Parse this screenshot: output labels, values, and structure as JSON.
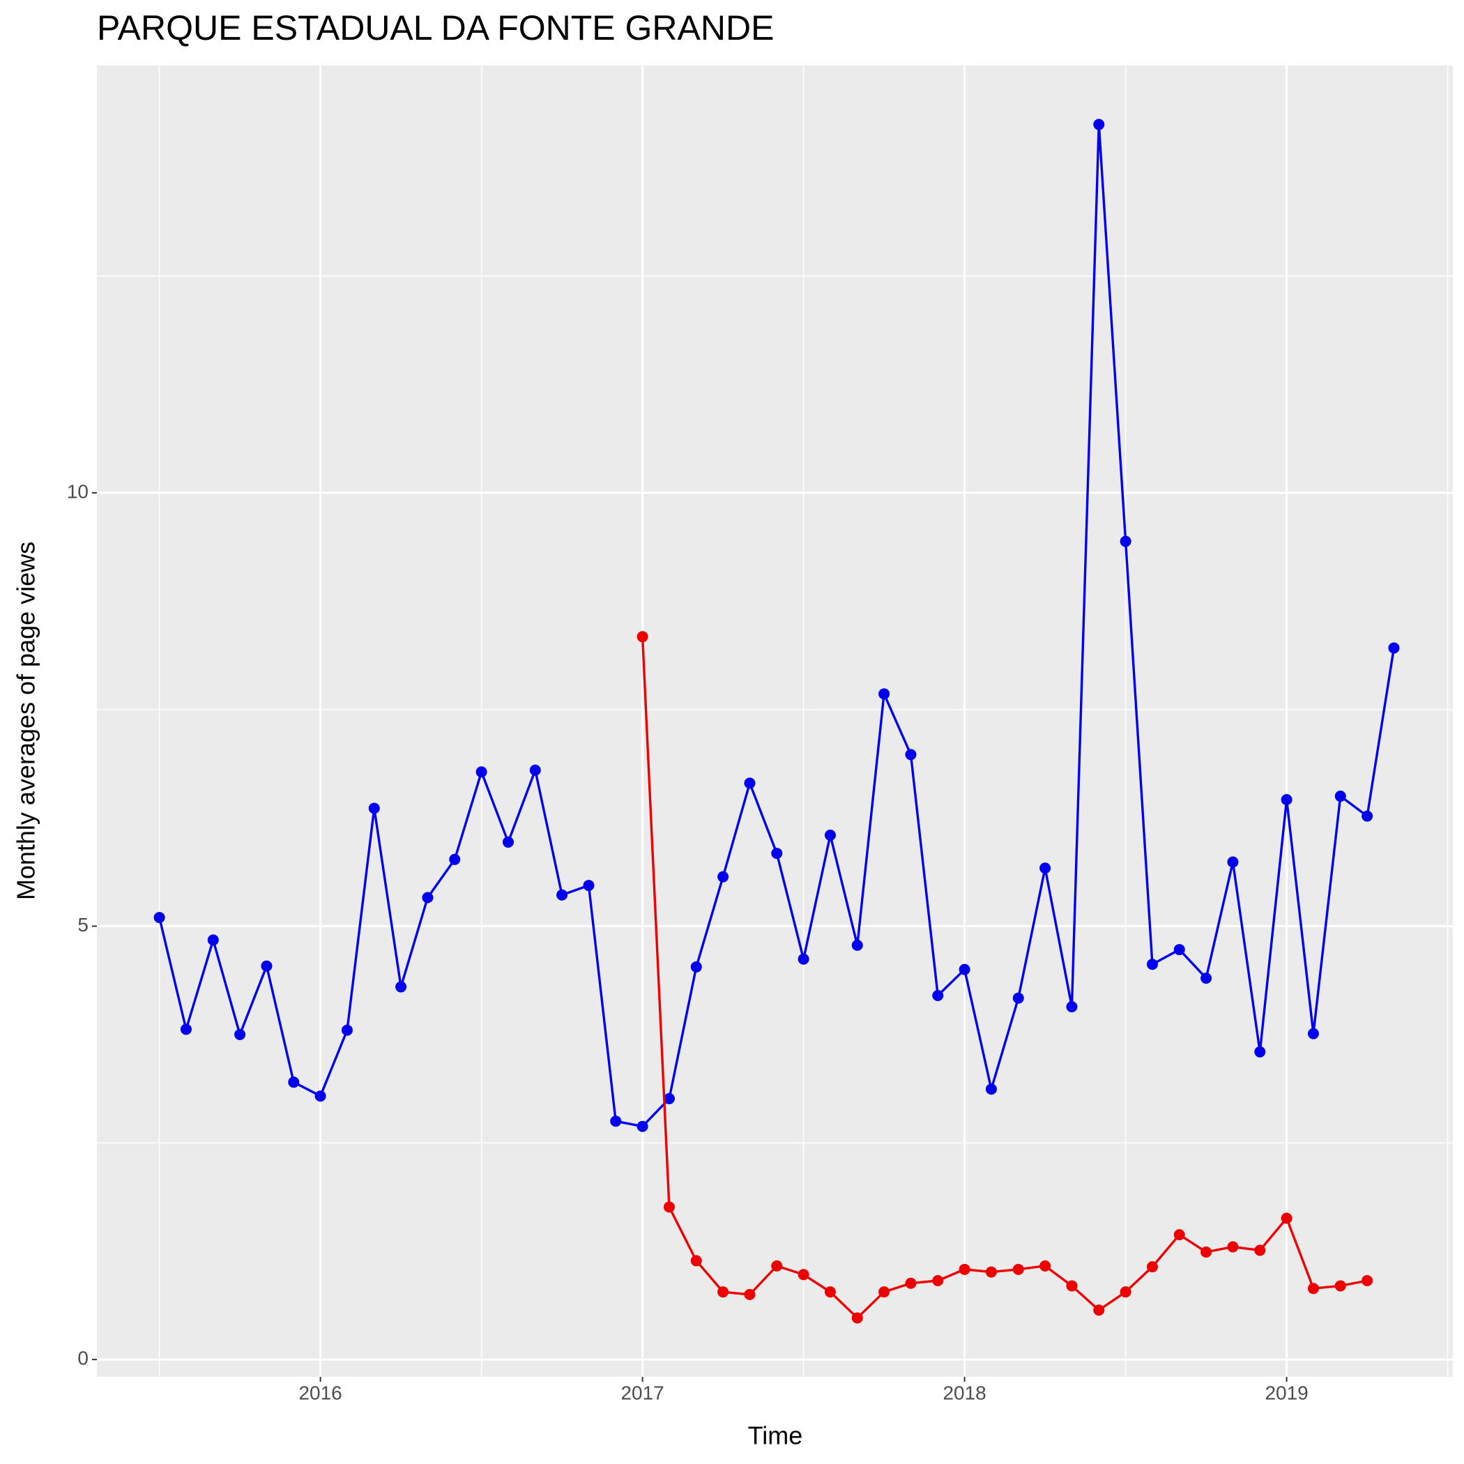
{
  "chart_data": {
    "type": "line",
    "title": "PARQUE ESTADUAL DA FONTE GRANDE",
    "x_label": "Time",
    "y_label": "Monthly averages of page views",
    "x": [
      2015.5,
      2015.583,
      2015.667,
      2015.75,
      2015.833,
      2015.917,
      2016,
      2016.083,
      2016.167,
      2016.25,
      2016.333,
      2016.417,
      2016.5,
      2016.583,
      2016.667,
      2016.75,
      2016.833,
      2016.917,
      2017,
      2017.083,
      2017.167,
      2017.25,
      2017.333,
      2017.417,
      2017.5,
      2017.583,
      2017.667,
      2017.75,
      2017.833,
      2017.917,
      2018,
      2018.083,
      2018.167,
      2018.25,
      2018.333,
      2018.417,
      2018.5,
      2018.583,
      2018.667,
      2018.75,
      2018.833,
      2018.917,
      2019,
      2019.083,
      2019.167,
      2019.25,
      2019.333
    ],
    "series": [
      {
        "color": "#0000ee",
        "values": [
          5.1,
          3.81,
          4.84,
          3.75,
          4.54,
          3.2,
          3.04,
          3.8,
          6.36,
          4.3,
          5.33,
          5.77,
          6.78,
          5.97,
          6.8,
          5.36,
          5.47,
          2.75,
          2.69,
          3.01,
          4.53,
          5.57,
          6.65,
          5.84,
          4.62,
          6.05,
          4.78,
          7.68,
          6.98,
          4.2,
          4.5,
          3.12,
          4.17,
          5.67,
          4.07,
          14.25,
          9.44,
          4.56,
          4.73,
          4.4,
          5.74,
          3.55,
          6.46,
          3.76,
          6.5,
          6.27,
          8.21
        ]
      },
      {
        "color": "#ee0000",
        "values": [
          null,
          null,
          null,
          null,
          null,
          null,
          null,
          null,
          null,
          null,
          null,
          null,
          null,
          null,
          null,
          null,
          null,
          null,
          8.34,
          1.76,
          1.14,
          0.78,
          0.75,
          1.08,
          0.98,
          0.78,
          0.48,
          0.78,
          0.88,
          0.91,
          1.04,
          1.01,
          1.04,
          1.08,
          0.85,
          0.57,
          0.78,
          1.07,
          1.44,
          1.24,
          1.3,
          1.26,
          1.63,
          0.82,
          0.85,
          0.91,
          null
        ]
      }
    ],
    "xlim": [
      2015.306,
      2019.516
    ],
    "xticks": [
      2016,
      2017,
      2018,
      2019
    ],
    "xminor": [
      2015.5,
      2016.5,
      2017.5,
      2018.5,
      2019.5
    ],
    "ylim": [
      -0.2,
      14.93
    ],
    "yticks": [
      0,
      5,
      10
    ],
    "yminor": [
      2.5,
      7.5,
      12.5
    ],
    "grid": true
  }
}
